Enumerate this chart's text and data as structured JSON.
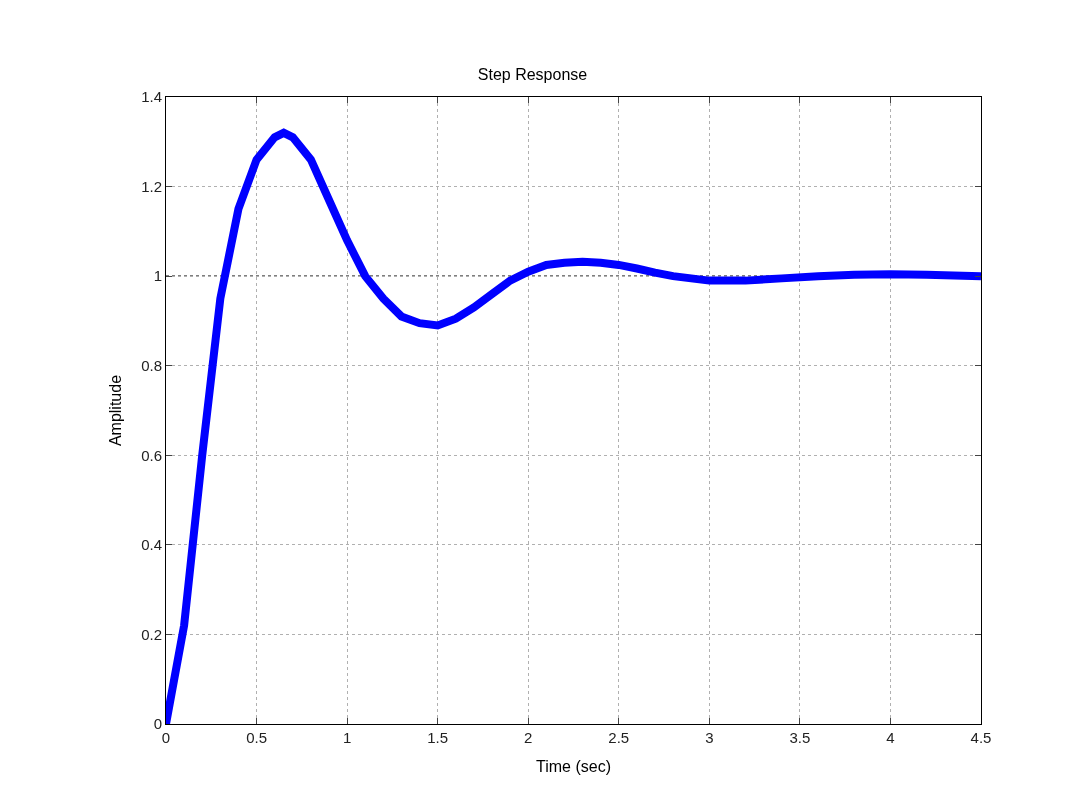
{
  "chart_data": {
    "type": "line",
    "title": "Step Response",
    "xlabel": "Time (sec)",
    "ylabel": "Amplitude",
    "x": [
      0,
      0.1,
      0.2,
      0.3,
      0.4,
      0.5,
      0.6,
      0.65,
      0.7,
      0.8,
      0.9,
      1.0,
      1.1,
      1.2,
      1.3,
      1.4,
      1.5,
      1.6,
      1.7,
      1.8,
      1.9,
      2.0,
      2.1,
      2.2,
      2.3,
      2.4,
      2.5,
      2.6,
      2.7,
      2.8,
      2.9,
      3.0,
      3.1,
      3.2,
      3.4,
      3.6,
      3.8,
      4.0,
      4.2,
      4.5
    ],
    "series": [
      {
        "color": "#0000ff",
        "values": [
          0,
          0.22,
          0.6,
          0.95,
          1.15,
          1.26,
          1.31,
          1.32,
          1.31,
          1.26,
          1.17,
          1.08,
          1.0,
          0.95,
          0.91,
          0.895,
          0.89,
          0.905,
          0.93,
          0.96,
          0.99,
          1.01,
          1.025,
          1.03,
          1.032,
          1.03,
          1.025,
          1.017,
          1.008,
          1.0,
          0.995,
          0.99,
          0.99,
          0.99,
          0.995,
          1.0,
          1.003,
          1.004,
          1.003,
          1.0
        ]
      }
    ],
    "xlim": [
      0,
      4.5
    ],
    "xticks": [
      0,
      0.5,
      1,
      1.5,
      2,
      2.5,
      3,
      3.5,
      4,
      4.5
    ],
    "ylim": [
      0,
      1.4
    ],
    "yticks": [
      0,
      0.2,
      0.4,
      0.6,
      0.8,
      1,
      1.2,
      1.4
    ],
    "grid": true,
    "line_style": "solid",
    "ref_lines": [
      {
        "axis": "y",
        "value": 1,
        "color": "#000000",
        "line_style": "dotted"
      }
    ]
  }
}
